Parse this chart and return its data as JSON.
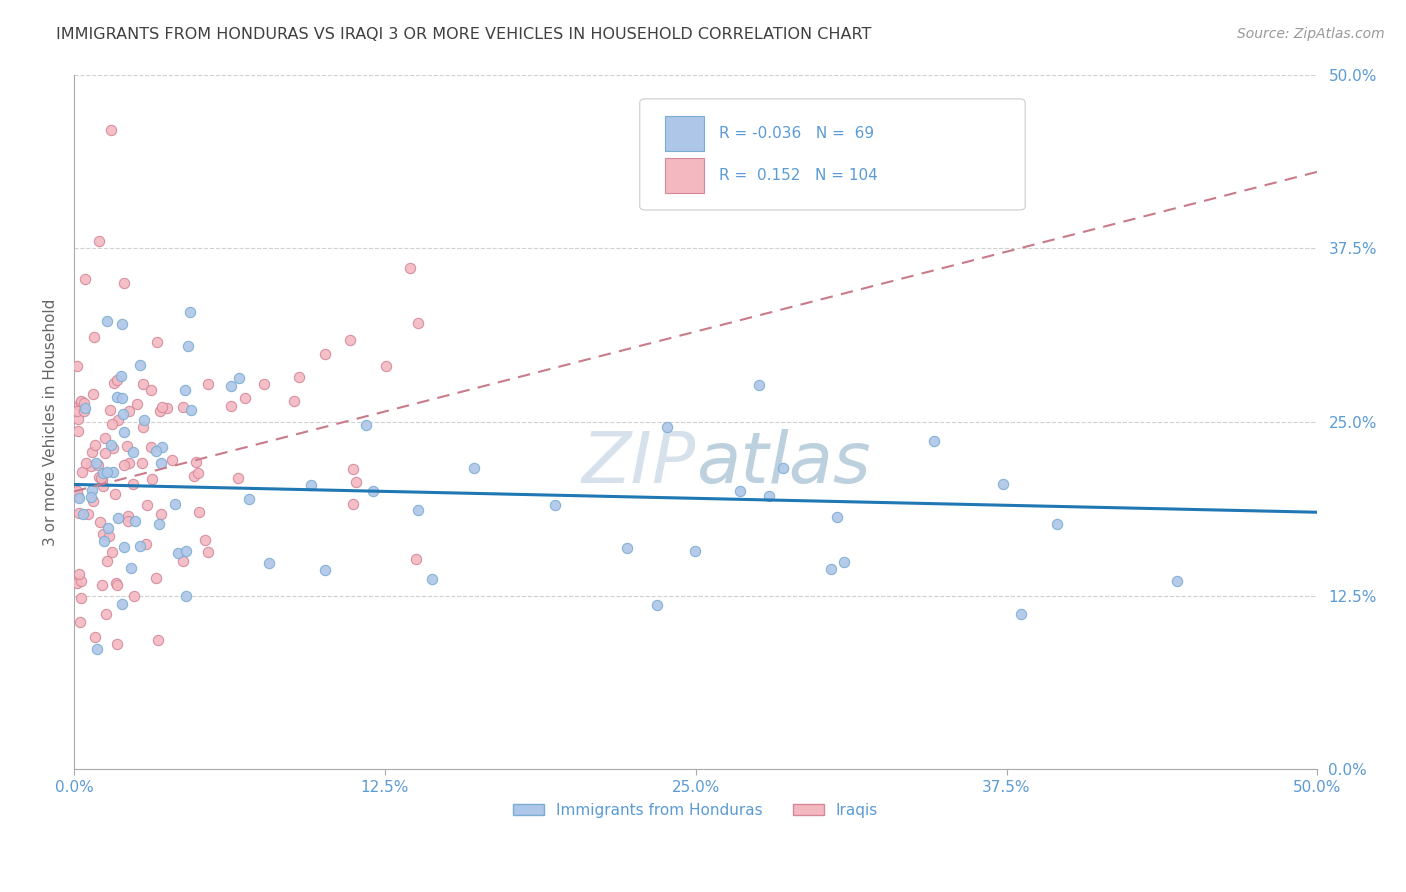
{
  "title": "IMMIGRANTS FROM HONDURAS VS IRAQI 3 OR MORE VEHICLES IN HOUSEHOLD CORRELATION CHART",
  "source": "Source: ZipAtlas.com",
  "ylabel": "3 or more Vehicles in Household",
  "legend_label1": "Immigrants from Honduras",
  "legend_label2": "Iraqis",
  "r1": "-0.036",
  "n1": "69",
  "r2": "0.152",
  "n2": "104",
  "tick_vals": [
    0,
    12.5,
    25.0,
    37.5,
    50.0
  ],
  "tick_labels": [
    "0.0%",
    "12.5%",
    "25.0%",
    "37.5%",
    "50.0%"
  ],
  "xlim": [
    0,
    50
  ],
  "ylim": [
    0,
    50
  ],
  "color_blue": "#aec6e8",
  "color_pink": "#f4b8c1",
  "line_blue": "#1f77b4",
  "line_pink": "#c97b8a",
  "scatter_blue_edge": "#7aadd4",
  "scatter_pink_edge": "#d4889a",
  "background": "#ffffff",
  "title_color": "#404040",
  "tick_color": "#5b9bd5",
  "blue_line_y0": 20.5,
  "blue_line_y1": 18.5,
  "pink_line_y0": 20.0,
  "pink_line_y1": 43.0,
  "watermark_zip_color": "#c8d4e0",
  "watermark_atlas_color": "#a8c4d8"
}
